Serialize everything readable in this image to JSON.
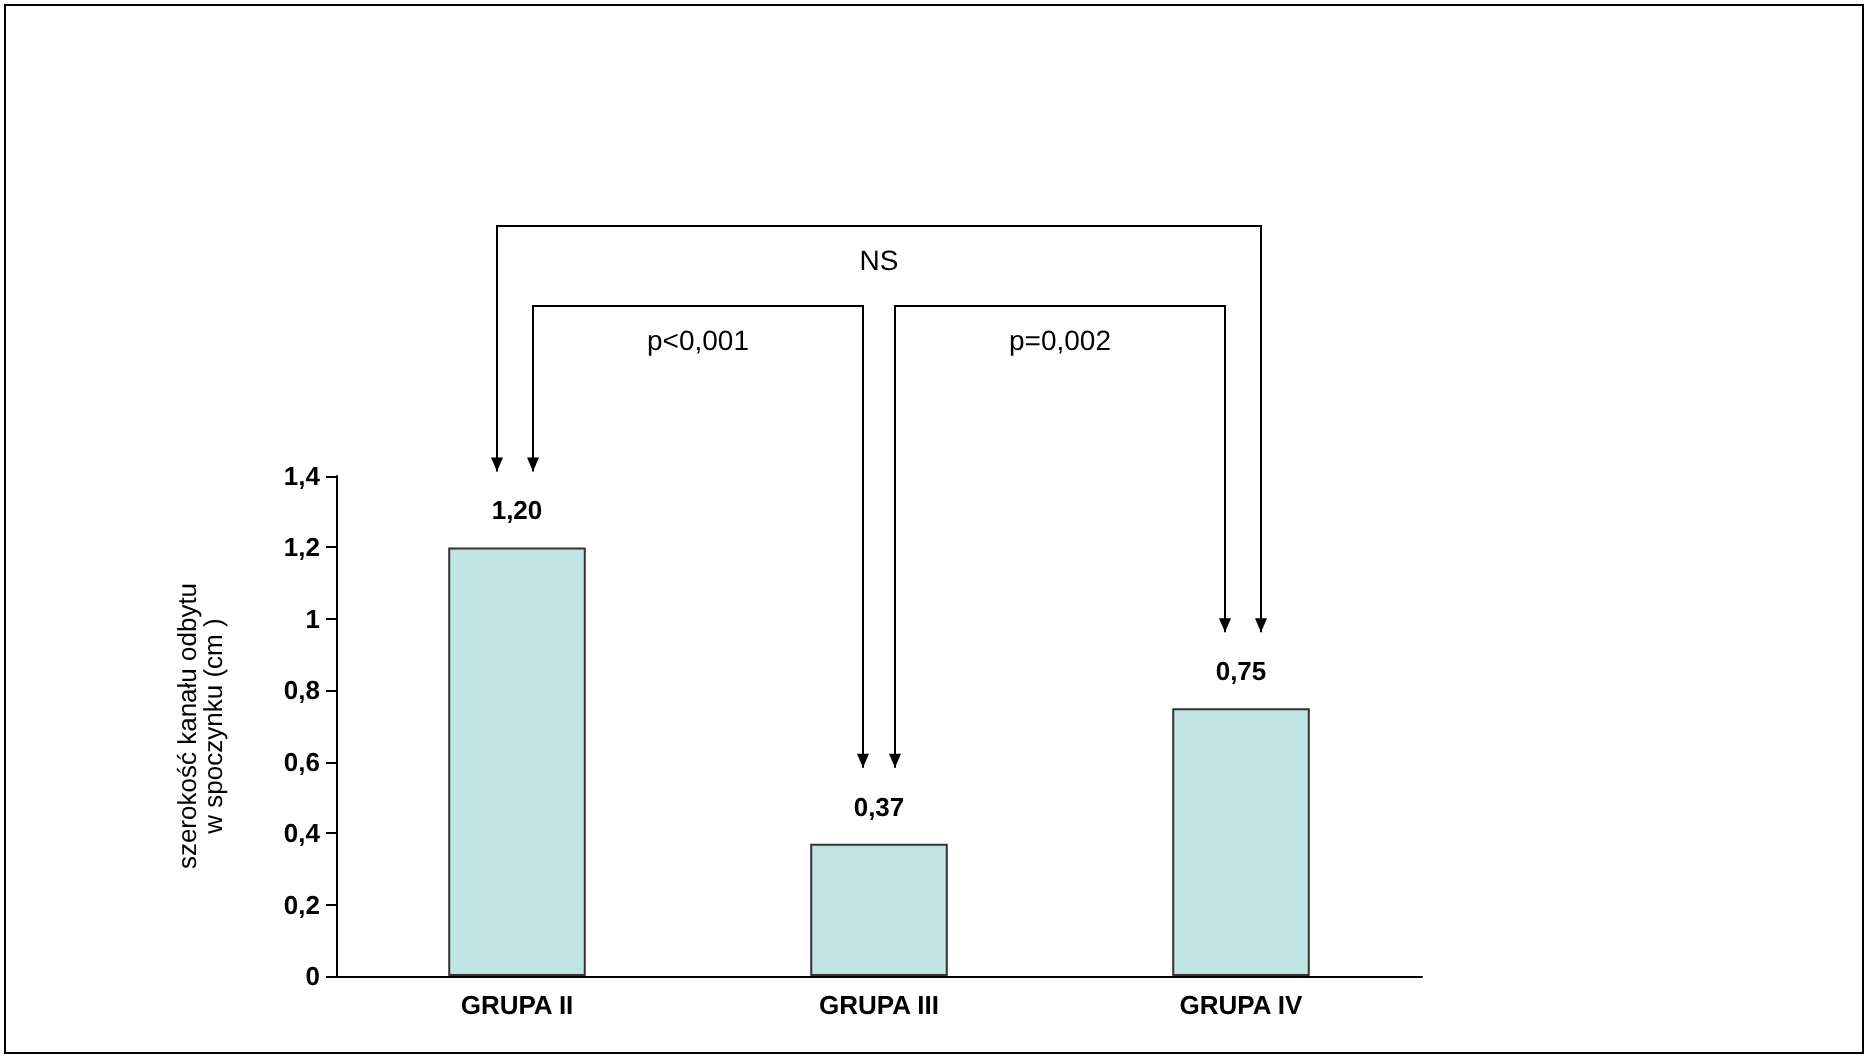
{
  "chart_data": {
    "type": "bar",
    "categories": [
      "GRUPA II",
      "GRUPA III",
      "GRUPA IV"
    ],
    "values": [
      1.2,
      0.37,
      0.75
    ],
    "value_labels": [
      "1,20",
      "0,37",
      "0,75"
    ],
    "color": "#c0e4e4",
    "ylabel": "szerokość kanału odbytu\nw spoczynku (cm )",
    "ylim": [
      0,
      1.4
    ],
    "yticks": [
      0,
      {
        "value": 0.2,
        "label": "0,2"
      },
      {
        "value": 0.4,
        "label": "0,4"
      },
      {
        "value": 0.6,
        "label": "0,6"
      },
      {
        "value": 0.8,
        "label": "0,8"
      },
      1,
      {
        "value": 1.2,
        "label": "1,2"
      },
      {
        "value": 1.4,
        "label": "1,4"
      }
    ],
    "annotations": [
      "NS",
      "p<0,001",
      "p=0,002"
    ],
    "grid": false
  }
}
